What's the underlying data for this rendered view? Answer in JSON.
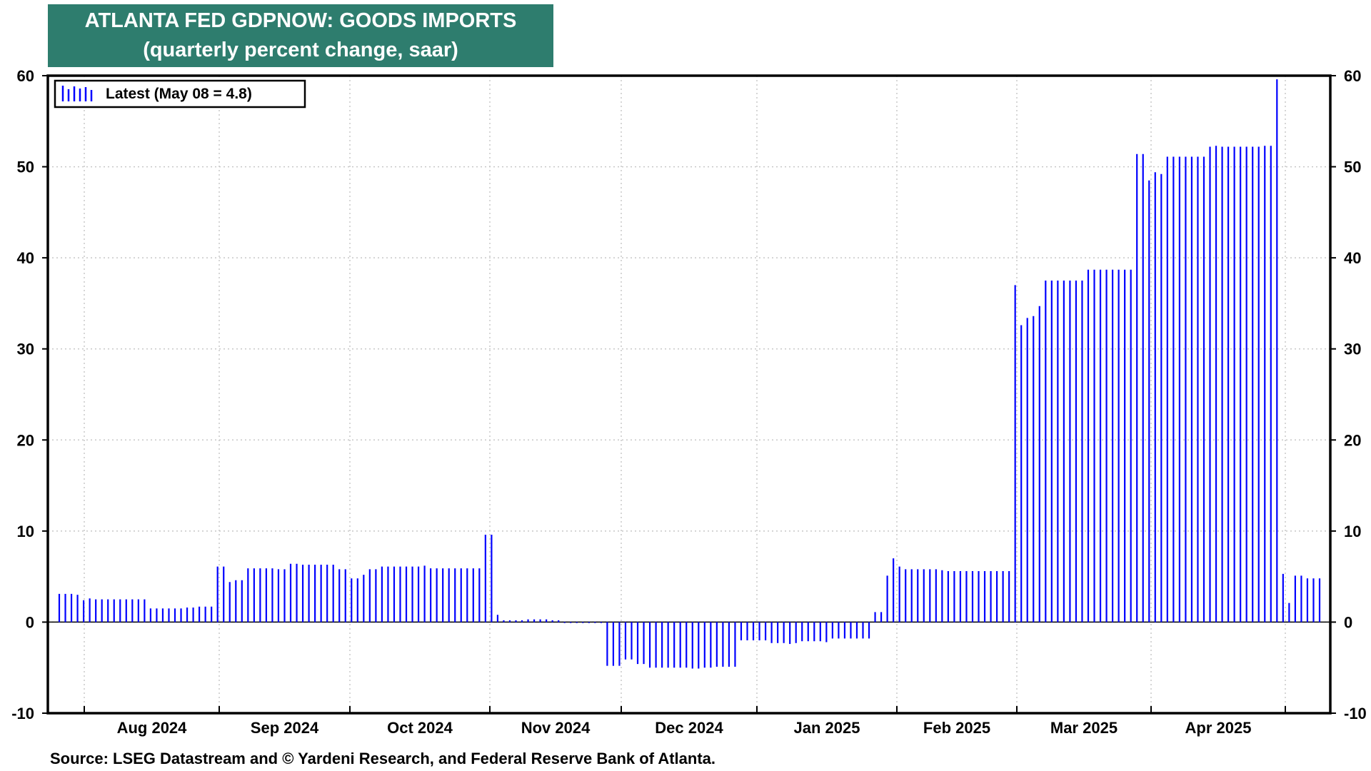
{
  "chart_data": {
    "type": "bar",
    "title": "ATLANTA FED GDPNOW: GOODS IMPORTS",
    "subtitle": "(quarterly percent change, saar)",
    "legend": {
      "label": "Latest (May 08 = 4.8)",
      "placement": "top-left"
    },
    "source": "Source: LSEG Datastream and © Yardeni Research, and Federal Reserve Bank of Atlanta.",
    "ylim": [
      -10,
      60
    ],
    "yticks": [
      -10,
      0,
      10,
      20,
      30,
      40,
      50,
      60
    ],
    "x_month_labels": [
      "Aug 2024",
      "Sep 2024",
      "Oct 2024",
      "Nov 2024",
      "Dec 2024",
      "Jan 2025",
      "Feb 2025",
      "Mar 2025",
      "Apr 2025"
    ],
    "grid": true,
    "series": [
      {
        "color": "#0000ff",
        "values": [
          3.1,
          3.1,
          3.1,
          3.0,
          2.4,
          2.6,
          2.5,
          2.5,
          2.5,
          2.5,
          2.5,
          2.5,
          2.5,
          2.5,
          2.5,
          1.5,
          1.5,
          1.5,
          1.5,
          1.5,
          1.5,
          1.6,
          1.6,
          1.7,
          1.7,
          1.7,
          6.1,
          6.1,
          4.4,
          4.6,
          4.6,
          5.9,
          5.9,
          5.9,
          5.9,
          5.9,
          5.8,
          5.8,
          6.4,
          6.4,
          6.3,
          6.3,
          6.3,
          6.3,
          6.3,
          6.3,
          5.8,
          5.8,
          4.8,
          4.8,
          5.2,
          5.8,
          5.8,
          6.1,
          6.1,
          6.1,
          6.1,
          6.1,
          6.1,
          6.1,
          6.2,
          5.9,
          5.9,
          5.9,
          5.9,
          5.9,
          5.9,
          5.9,
          5.9,
          5.9,
          9.6,
          9.6,
          0.8,
          0.2,
          0.2,
          0.2,
          0.2,
          0.3,
          0.3,
          0.3,
          0.3,
          0.2,
          0.2,
          -0.1,
          -0.1,
          -0.1,
          -0.1,
          -0.1,
          -0.1,
          -0.1,
          -4.8,
          -4.8,
          -4.8,
          -4.1,
          -4.1,
          -4.6,
          -4.6,
          -5.0,
          -5.0,
          -5.0,
          -5.0,
          -5.0,
          -5.0,
          -5.0,
          -5.1,
          -5.1,
          -5.0,
          -5.0,
          -4.9,
          -4.9,
          -4.9,
          -4.9,
          -2.0,
          -2.0,
          -2.0,
          -2.0,
          -2.0,
          -2.3,
          -2.3,
          -2.3,
          -2.4,
          -2.3,
          -2.1,
          -2.1,
          -2.1,
          -2.1,
          -2.2,
          -1.8,
          -1.8,
          -1.8,
          -1.8,
          -1.8,
          -1.8,
          -1.8,
          1.1,
          1.1,
          5.1,
          7.0,
          6.1,
          5.8,
          5.8,
          5.8,
          5.8,
          5.8,
          5.8,
          5.7,
          5.6,
          5.6,
          5.6,
          5.6,
          5.6,
          5.6,
          5.6,
          5.6,
          5.6,
          5.6,
          5.6,
          37.0,
          32.6,
          33.4,
          33.6,
          34.7,
          37.5,
          37.5,
          37.5,
          37.5,
          37.5,
          37.5,
          37.5,
          38.7,
          38.7,
          38.7,
          38.7,
          38.7,
          38.7,
          38.7,
          38.7,
          51.4,
          51.4,
          48.5,
          49.4,
          49.2,
          51.1,
          51.1,
          51.1,
          51.1,
          51.1,
          51.1,
          51.1,
          52.2,
          52.3,
          52.2,
          52.2,
          52.2,
          52.2,
          52.2,
          52.2,
          52.2,
          52.3,
          52.3,
          59.6,
          5.3,
          2.1,
          5.1,
          5.1,
          4.8,
          4.8,
          4.8
        ]
      }
    ]
  }
}
